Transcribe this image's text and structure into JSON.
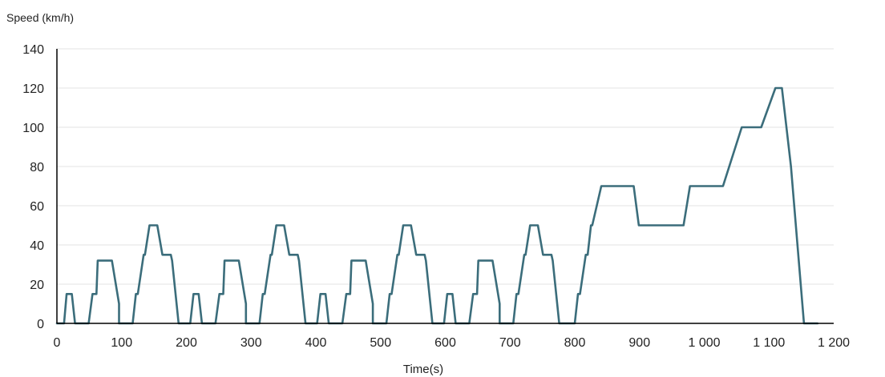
{
  "chart_data": {
    "type": "line",
    "title": "",
    "ylabel": "Speed (km/h)",
    "xlabel": "Time(s)",
    "xlim": [
      0,
      1200
    ],
    "ylim": [
      0,
      140
    ],
    "x_ticks": [
      0,
      100,
      200,
      300,
      400,
      500,
      600,
      700,
      800,
      900,
      1000,
      1100,
      1200
    ],
    "x_tick_labels": [
      "0",
      "100",
      "200",
      "300",
      "400",
      "500",
      "600",
      "700",
      "800",
      "900",
      "1 000",
      "1 100",
      "1 200"
    ],
    "y_ticks": [
      0,
      20,
      40,
      60,
      80,
      100,
      120,
      140
    ],
    "y_tick_labels": [
      "0",
      "20",
      "40",
      "60",
      "80",
      "100",
      "120",
      "140"
    ],
    "grid": "horizontal",
    "legend": "none",
    "colors": {
      "line": "#3b6d7b",
      "grid": "#e3e3e3",
      "axis": "#000000"
    },
    "series": [
      {
        "points": [
          [
            0,
            0
          ],
          [
            11,
            0
          ],
          [
            15,
            15
          ],
          [
            23,
            15
          ],
          [
            28,
            0
          ],
          [
            49,
            0
          ],
          [
            55,
            15
          ],
          [
            61,
            15
          ],
          [
            63,
            32
          ],
          [
            85,
            32
          ],
          [
            96,
            10
          ],
          [
            96,
            0
          ],
          [
            117,
            0
          ],
          [
            122,
            15
          ],
          [
            125,
            15
          ],
          [
            134,
            35
          ],
          [
            136,
            35
          ],
          [
            143,
            50
          ],
          [
            155,
            50
          ],
          [
            163,
            35
          ],
          [
            176,
            35
          ],
          [
            178,
            32
          ],
          [
            188,
            0
          ],
          [
            206,
            0
          ],
          [
            211,
            15
          ],
          [
            219,
            15
          ],
          [
            224,
            0
          ],
          [
            245,
            0
          ],
          [
            251,
            15
          ],
          [
            257,
            15
          ],
          [
            259,
            32
          ],
          [
            281,
            32
          ],
          [
            292,
            10
          ],
          [
            292,
            0
          ],
          [
            313,
            0
          ],
          [
            318,
            15
          ],
          [
            321,
            15
          ],
          [
            330,
            35
          ],
          [
            332,
            35
          ],
          [
            339,
            50
          ],
          [
            351,
            50
          ],
          [
            359,
            35
          ],
          [
            372,
            35
          ],
          [
            374,
            32
          ],
          [
            384,
            0
          ],
          [
            402,
            0
          ],
          [
            407,
            15
          ],
          [
            415,
            15
          ],
          [
            420,
            0
          ],
          [
            441,
            0
          ],
          [
            447,
            15
          ],
          [
            453,
            15
          ],
          [
            455,
            32
          ],
          [
            477,
            32
          ],
          [
            488,
            10
          ],
          [
            488,
            0
          ],
          [
            509,
            0
          ],
          [
            514,
            15
          ],
          [
            517,
            15
          ],
          [
            526,
            35
          ],
          [
            528,
            35
          ],
          [
            535,
            50
          ],
          [
            547,
            50
          ],
          [
            555,
            35
          ],
          [
            568,
            35
          ],
          [
            570,
            32
          ],
          [
            580,
            0
          ],
          [
            598,
            0
          ],
          [
            603,
            15
          ],
          [
            611,
            15
          ],
          [
            616,
            0
          ],
          [
            637,
            0
          ],
          [
            643,
            15
          ],
          [
            649,
            15
          ],
          [
            651,
            32
          ],
          [
            673,
            32
          ],
          [
            684,
            10
          ],
          [
            684,
            0
          ],
          [
            705,
            0
          ],
          [
            710,
            15
          ],
          [
            713,
            15
          ],
          [
            722,
            35
          ],
          [
            724,
            35
          ],
          [
            731,
            50
          ],
          [
            743,
            50
          ],
          [
            751,
            35
          ],
          [
            764,
            35
          ],
          [
            766,
            32
          ],
          [
            776,
            0
          ],
          [
            800,
            0
          ],
          [
            805,
            15
          ],
          [
            808,
            15
          ],
          [
            817,
            35
          ],
          [
            820,
            35
          ],
          [
            825,
            50
          ],
          [
            827,
            50
          ],
          [
            841,
            70
          ],
          [
            891,
            70
          ],
          [
            899,
            50
          ],
          [
            968,
            50
          ],
          [
            978,
            70
          ],
          [
            1029,
            70
          ],
          [
            1058,
            100
          ],
          [
            1088,
            100
          ],
          [
            1110,
            120
          ],
          [
            1120,
            120
          ],
          [
            1134,
            80
          ],
          [
            1154,
            0
          ],
          [
            1175,
            0
          ]
        ]
      }
    ]
  }
}
